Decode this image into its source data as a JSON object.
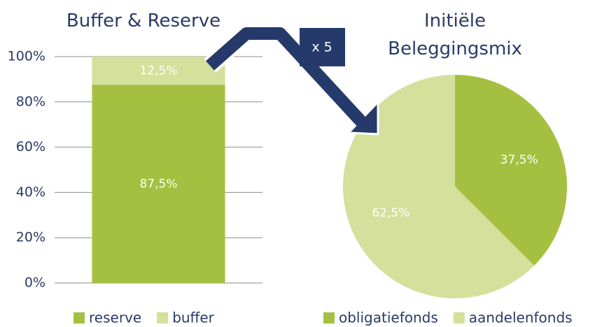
{
  "annotation": "x 5",
  "chart_data": [
    {
      "type": "bar",
      "stacked": true,
      "title": "Buffer & Reserve",
      "categories": [
        null
      ],
      "series": [
        {
          "name": "reserve",
          "color": "#a5c040",
          "values": [
            87.5
          ],
          "value_labels": [
            "87,5%"
          ]
        },
        {
          "name": "buffer",
          "color": "#d4e09b",
          "values": [
            12.5
          ],
          "value_labels": [
            "12,5%"
          ]
        }
      ],
      "ylim": [
        0,
        100
      ],
      "yticks": [
        {
          "value": 0,
          "label": "0%"
        },
        {
          "value": 20,
          "label": "20%"
        },
        {
          "value": 40,
          "label": "40%"
        },
        {
          "value": 60,
          "label": "60%"
        },
        {
          "value": 80,
          "label": "80%"
        },
        {
          "value": 100,
          "label": "100%"
        }
      ],
      "grid": true,
      "legend": "bottom"
    },
    {
      "type": "pie",
      "title": "Initiële Beleggingsmix",
      "categories": [
        "obligatiefonds",
        "aandelenfonds"
      ],
      "values": [
        37.5,
        62.5
      ],
      "value_labels": [
        "37,5%",
        "62,5%"
      ],
      "colors": [
        "#a5c040",
        "#d4e09b"
      ],
      "legend": "bottom"
    }
  ]
}
